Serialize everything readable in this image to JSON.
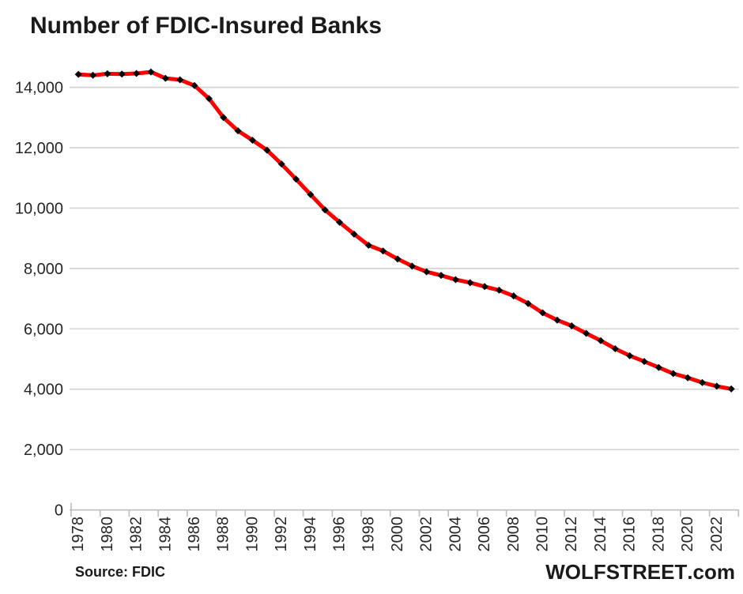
{
  "title": "Number of FDIC-Insured Banks",
  "footer": {
    "source": "Source: FDIC",
    "brand_name": "WOLFSTREET",
    "brand_suffix": ".com"
  },
  "colors": {
    "background": "#FFFFFF",
    "line_red": "#FF0000",
    "marker_black": "#000000",
    "gridline": "#D4D4D4",
    "axis": "#C0C0C0",
    "axis_text": "#262626",
    "title_text": "#1A1A1A"
  },
  "y_axis": {
    "tick_labels": [
      "0",
      "2,000",
      "4,000",
      "6,000",
      "8,000",
      "10,000",
      "12,000",
      "14,000"
    ]
  },
  "x_axis": {
    "tick_labels": [
      "1978",
      "1980",
      "1982",
      "1984",
      "1986",
      "1988",
      "1990",
      "1992",
      "1994",
      "1996",
      "1998",
      "2000",
      "2002",
      "2004",
      "2006",
      "2008",
      "2010",
      "2012",
      "2014",
      "2016",
      "2018",
      "2020",
      "2022"
    ]
  },
  "chart_data": {
    "type": "line",
    "title": "Number of FDIC-Insured Banks",
    "x": [
      1978,
      1979,
      1980,
      1981,
      1982,
      1983,
      1984,
      1985,
      1986,
      1987,
      1988,
      1989,
      1990,
      1991,
      1992,
      1993,
      1994,
      1995,
      1996,
      1997,
      1998,
      1999,
      2000,
      2001,
      2002,
      2003,
      2004,
      2005,
      2006,
      2007,
      2008,
      2009,
      2010,
      2011,
      2012,
      2013,
      2014,
      2015,
      2016,
      2017,
      2018,
      2019,
      2020,
      2021,
      2022,
      2023
    ],
    "values": [
      14430,
      14400,
      14450,
      14440,
      14460,
      14510,
      14300,
      14250,
      14060,
      13630,
      13000,
      12560,
      12250,
      11920,
      11460,
      10960,
      10450,
      9940,
      9530,
      9140,
      8770,
      8580,
      8315,
      8080,
      7890,
      7770,
      7630,
      7530,
      7400,
      7280,
      7090,
      6840,
      6530,
      6290,
      6100,
      5850,
      5610,
      5340,
      5110,
      4920,
      4720,
      4520,
      4380,
      4220,
      4100,
      4010
    ],
    "xlabel": "",
    "ylabel": "",
    "ylim": [
      0,
      14800
    ],
    "y_ticks": [
      0,
      2000,
      4000,
      6000,
      8000,
      10000,
      12000,
      14000
    ],
    "x_label_step": 2,
    "grid": "horizontal",
    "legend": "none",
    "line_color": "#FF0000",
    "line_width": 5,
    "marker": "diamond",
    "marker_size": 9,
    "marker_color": "#000000"
  }
}
